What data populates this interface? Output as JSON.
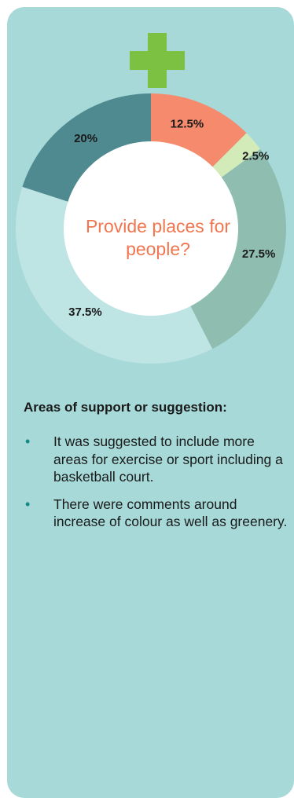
{
  "colors": {
    "card_background": "#a6d9d8",
    "plus": "#7cc142",
    "center_disc": "#ffffff",
    "center_text": "#f0764f",
    "bullet": "#148b84",
    "label": "#1a1a1a"
  },
  "icon": "plus-icon",
  "chart_data": {
    "type": "pie",
    "style": "donut",
    "center_label": "Provide places for people?",
    "slices": [
      {
        "label": "12.5%",
        "value": 12.5,
        "color": "#f58b6c"
      },
      {
        "label": "2.5%",
        "value": 2.5,
        "color": "#d3eab9"
      },
      {
        "label": "27.5%",
        "value": 27.5,
        "color": "#8fbeb0"
      },
      {
        "label": "37.5%",
        "value": 37.5,
        "color": "#bfe4e4"
      },
      {
        "label": "20%",
        "value": 20,
        "color": "#4f8a91"
      }
    ]
  },
  "section": {
    "heading": "Areas of support or suggestion:",
    "bullet_symbol": "•",
    "items": [
      "It was suggested to include more areas for exercise or sport including a basketball court.",
      "There were comments around increase of colour as well as greenery."
    ]
  }
}
